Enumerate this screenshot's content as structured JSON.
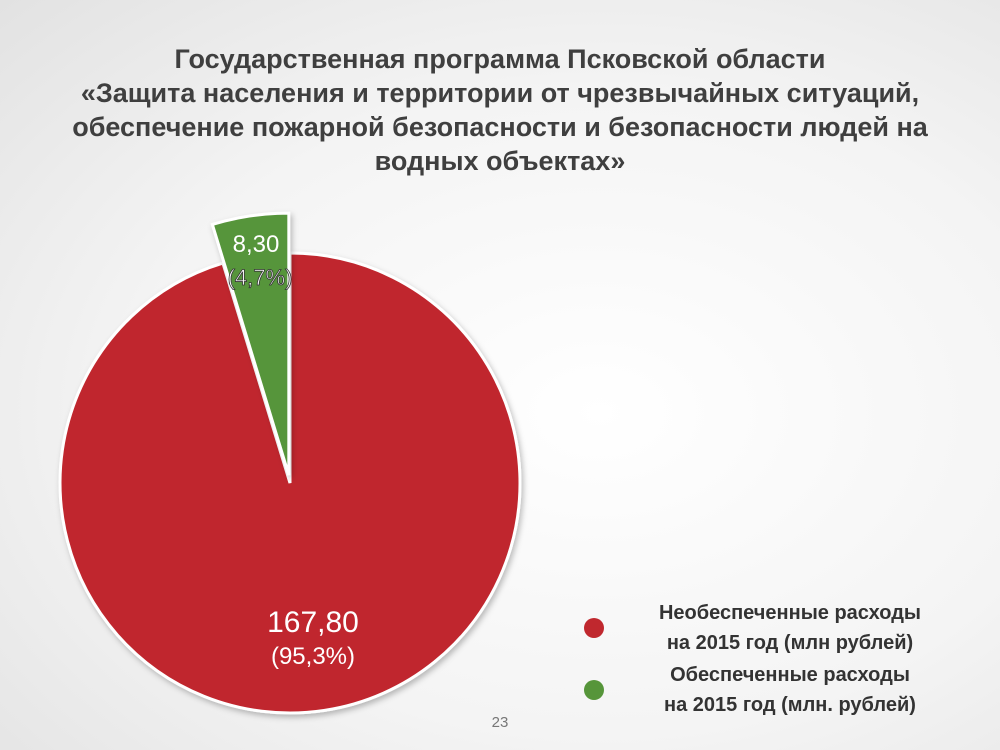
{
  "slide": {
    "title_lines": [
      "Государственная программа Псковской области",
      "«Защита населения и территории от чрезвычайных ситуаций,",
      "обеспечение пожарной безопасности и безопасности людей на",
      "водных объектах»"
    ],
    "page_number": "23"
  },
  "chart_data": {
    "type": "pie",
    "title": "",
    "slices": [
      {
        "value_label": "167,80",
        "percent_label": "(95,3%)",
        "value": 167.8,
        "percent": 95.3,
        "color": "#c0282e",
        "legend_lines": [
          "Необеспеченные расходы",
          "на 2015 год  (млн рублей)"
        ]
      },
      {
        "value_label": "8,30",
        "percent_label": "(4,7%)",
        "value": 8.3,
        "percent": 4.7,
        "color": "#56953a",
        "exploded": true,
        "legend_lines": [
          "Обеспеченные расходы",
          "на 2015 год (млн. рублей)"
        ]
      }
    ],
    "legend_position": "bottom-right"
  }
}
